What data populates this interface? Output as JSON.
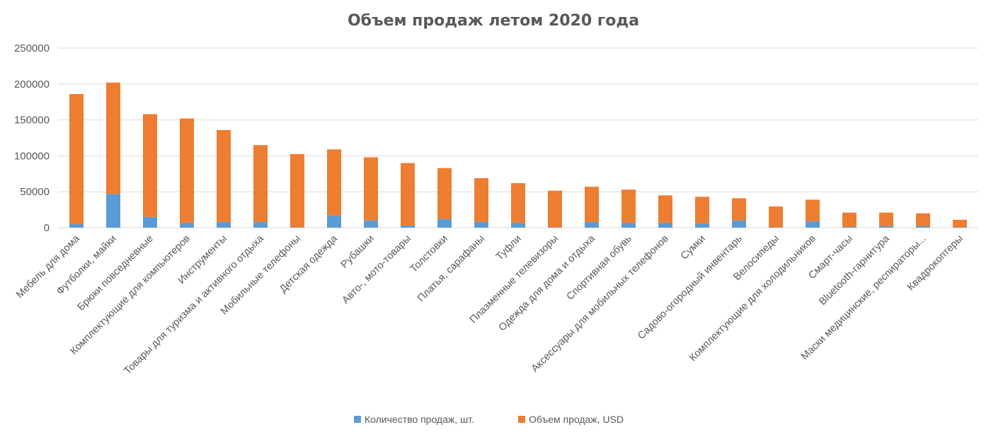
{
  "chart_data": {
    "type": "bar",
    "stacked": true,
    "title": "Объем продаж летом 2020 года",
    "xlabel": "",
    "ylabel": "",
    "ylim": [
      0,
      250000
    ],
    "yticks": [
      "0",
      "50000",
      "100000",
      "150000",
      "200000",
      "250000"
    ],
    "grid": true,
    "legend_position": "bottom",
    "categories": [
      "Мебель для дома",
      "Футболки, майки",
      "Брюки повседневные",
      "Комплектующие для компьютеров",
      "Инструменты",
      "Товары для туризма и активного отдыха",
      "Мобильные телефоны",
      "Детская одежда",
      "Рубашки",
      "Авто-, мото-товары",
      "Толстовки",
      "Платья, сарафаны",
      "Туфли",
      "Плазменные телевизоры",
      "Одежда для дома и отдыха",
      "Спортивная обувь",
      "Аксессуары для мобильных телефонов",
      "Сумки",
      "Садово-огородный инвентарь",
      "Велосипеды",
      "Комплектующие для холодильников",
      "Смарт-часы",
      "Bluetooth-гарнитура",
      "Маски медицинские, респираторы...",
      "Квадрокоптеры"
    ],
    "series": [
      {
        "name": "Количество продаж, шт.",
        "color": "#5b9bd5",
        "values": [
          5000,
          47000,
          15000,
          7000,
          8000,
          8000,
          500,
          17000,
          10000,
          3000,
          12000,
          8000,
          7000,
          500,
          8000,
          7000,
          7000,
          6000,
          10000,
          500,
          9000,
          1000,
          2000,
          2000,
          500
        ]
      },
      {
        "name": "Объем продаж, USD",
        "color": "#ed7d31",
        "values": [
          181000,
          155000,
          143000,
          145000,
          128000,
          107000,
          102000,
          92000,
          88000,
          87000,
          71000,
          61000,
          55000,
          51000,
          49000,
          46000,
          38000,
          37000,
          31000,
          29000,
          30000,
          20000,
          19000,
          18000,
          10500
        ]
      }
    ]
  }
}
